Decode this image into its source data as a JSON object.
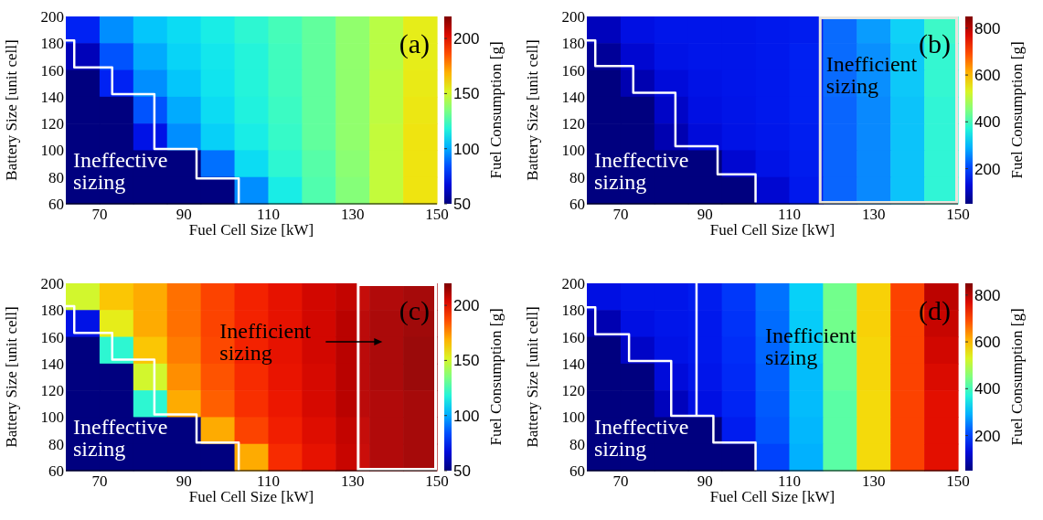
{
  "chart_data": [
    {
      "type": "heatmap",
      "title": "(a)",
      "xlabel": "Fuel Cell Size [kW]",
      "ylabel": "Battery Size [unit cell]",
      "clabel": "Fuel Consumption [g]",
      "xlim": [
        62,
        150
      ],
      "xticks": [
        70,
        90,
        110,
        130,
        150
      ],
      "ylim": [
        60,
        200
      ],
      "yticks": [
        60,
        80,
        100,
        120,
        140,
        160,
        180,
        200
      ],
      "clim": [
        50,
        220
      ],
      "cticks": [
        50,
        100,
        150,
        200
      ],
      "cells": [
        [
          75,
          95,
          105,
          110,
          115,
          120,
          125,
          130,
          138,
          145,
          155
        ],
        [
          60,
          85,
          100,
          108,
          113,
          118,
          124,
          130,
          138,
          145,
          155
        ],
        [
          50,
          75,
          95,
          105,
          112,
          118,
          124,
          130,
          138,
          146,
          156
        ],
        [
          50,
          50,
          85,
          100,
          110,
          117,
          123,
          130,
          138,
          146,
          157
        ],
        [
          50,
          50,
          70,
          95,
          107,
          115,
          122,
          130,
          138,
          147,
          158
        ],
        [
          50,
          50,
          50,
          50,
          90,
          110,
          120,
          128,
          137,
          147,
          158
        ],
        [
          50,
          50,
          50,
          50,
          50,
          95,
          115,
          127,
          136,
          147,
          158
        ]
      ],
      "series": [
        {
          "type": "line",
          "color": "#ffffff",
          "x": [
            62,
            64,
            64,
            73,
            73,
            83,
            83,
            93,
            93,
            103,
            103
          ],
          "values": [
            182,
            182,
            162,
            162,
            142,
            142,
            101,
            101,
            79,
            79,
            60
          ]
        }
      ],
      "annotations": [
        "Ineffective\nsizing"
      ]
    },
    {
      "type": "heatmap",
      "title": "(b)",
      "xlabel": "Fuel Cell Size [kW]",
      "ylabel": "Battery Size [unit cell]",
      "clabel": "Fuel Consumption [g]",
      "xlim": [
        62,
        150
      ],
      "xticks": [
        70,
        90,
        110,
        130,
        150
      ],
      "ylim": [
        60,
        200
      ],
      "yticks": [
        60,
        80,
        100,
        120,
        140,
        160,
        180,
        200
      ],
      "clim": [
        50,
        850
      ],
      "cticks": [
        200,
        400,
        600,
        800
      ],
      "cells": [
        [
          100,
          140,
          150,
          150,
          150,
          155,
          160,
          230,
          270,
          320,
          390
        ],
        [
          70,
          120,
          145,
          150,
          150,
          155,
          165,
          230,
          260,
          310,
          380
        ],
        [
          50,
          90,
          130,
          145,
          150,
          155,
          165,
          230,
          260,
          310,
          380
        ],
        [
          50,
          50,
          110,
          140,
          148,
          155,
          165,
          225,
          255,
          305,
          375
        ],
        [
          50,
          50,
          90,
          130,
          145,
          152,
          162,
          225,
          255,
          305,
          375
        ],
        [
          50,
          50,
          50,
          50,
          120,
          145,
          160,
          225,
          255,
          305,
          375
        ],
        [
          50,
          50,
          50,
          50,
          50,
          120,
          155,
          225,
          255,
          305,
          375
        ]
      ],
      "series": [
        {
          "type": "line",
          "color": "#ffffff",
          "x": [
            62,
            64,
            64,
            73,
            73,
            83,
            83,
            93,
            93,
            102,
            102
          ],
          "values": [
            182,
            182,
            163,
            163,
            143,
            143,
            103,
            103,
            82,
            82,
            61
          ]
        }
      ],
      "bands": [
        {
          "axis": "x",
          "from": 117,
          "to": 150,
          "color": "#e8e4dc"
        }
      ],
      "annotations": [
        "Inefficient\nsizing",
        "Ineffective\nsizing"
      ]
    },
    {
      "type": "heatmap",
      "title": "(c)",
      "xlabel": "Fuel Cell Size [kW]",
      "ylabel": "Battery Size [unit cell]",
      "clabel": "Fuel Consumption [g]",
      "xlim": [
        62,
        150
      ],
      "xticks": [
        70,
        90,
        110,
        130,
        150
      ],
      "ylim": [
        60,
        200
      ],
      "yticks": [
        60,
        80,
        100,
        120,
        140,
        160,
        180,
        200
      ],
      "clim": [
        50,
        220
      ],
      "cticks": [
        50,
        100,
        150,
        200
      ],
      "cells": [
        [
          150,
          165,
          170,
          180,
          188,
          195,
          200,
          205,
          208,
          212,
          214
        ],
        [
          70,
          155,
          170,
          180,
          188,
          195,
          200,
          205,
          210,
          213,
          215
        ],
        [
          50,
          120,
          165,
          178,
          187,
          195,
          200,
          205,
          210,
          213,
          216
        ],
        [
          50,
          50,
          150,
          175,
          185,
          193,
          199,
          204,
          210,
          213,
          216
        ],
        [
          50,
          50,
          120,
          170,
          183,
          192,
          198,
          204,
          210,
          212,
          214
        ],
        [
          50,
          50,
          50,
          50,
          170,
          188,
          196,
          202,
          208,
          212,
          214
        ],
        [
          50,
          50,
          50,
          50,
          50,
          170,
          193,
          200,
          207,
          212,
          214
        ]
      ],
      "series": [
        {
          "type": "line",
          "color": "#ffffff",
          "x": [
            62,
            64,
            64,
            73,
            73,
            83,
            83,
            93,
            93,
            103,
            103
          ],
          "values": [
            183,
            183,
            163,
            163,
            143,
            143,
            102,
            102,
            81,
            81,
            60
          ]
        }
      ],
      "bands": [
        {
          "axis": "x",
          "from": 131,
          "to": 150,
          "color": "#ffffff"
        }
      ],
      "annotations": [
        "Inefficient\nsizing",
        "Ineffective\nsizing"
      ]
    },
    {
      "type": "heatmap",
      "title": "(d)",
      "xlabel": "Fuel Cell Size [kW]",
      "ylabel": "Battery Size [unit cell]",
      "clabel": "Fuel Consumption [g]",
      "xlim": [
        62,
        150
      ],
      "xticks": [
        70,
        90,
        110,
        130,
        150
      ],
      "ylim": [
        60,
        200
      ],
      "yticks": [
        60,
        80,
        100,
        120,
        140,
        160,
        180,
        200
      ],
      "clim": [
        50,
        850
      ],
      "cticks": [
        200,
        400,
        600,
        800
      ],
      "cells": [
        [
          140,
          150,
          150,
          160,
          190,
          240,
          320,
          440,
          580,
          700,
          800
        ],
        [
          90,
          140,
          150,
          155,
          185,
          235,
          315,
          440,
          580,
          700,
          790
        ],
        [
          50,
          110,
          145,
          155,
          180,
          230,
          310,
          430,
          575,
          700,
          780
        ],
        [
          50,
          50,
          130,
          150,
          175,
          225,
          300,
          430,
          575,
          700,
          770
        ],
        [
          50,
          50,
          100,
          140,
          170,
          220,
          300,
          420,
          570,
          700,
          760
        ],
        [
          50,
          50,
          50,
          50,
          160,
          215,
          295,
          420,
          570,
          700,
          760
        ],
        [
          50,
          50,
          50,
          50,
          50,
          200,
          290,
          420,
          570,
          700,
          760
        ]
      ],
      "series": [
        {
          "type": "line",
          "color": "#ffffff",
          "x": [
            62,
            64,
            64,
            72,
            72,
            82,
            82,
            92,
            92,
            102,
            102
          ],
          "values": [
            182,
            182,
            162,
            162,
            142,
            142,
            101,
            101,
            81,
            81,
            60
          ]
        },
        {
          "type": "line",
          "color": "#ffffff",
          "x": [
            88,
            88
          ],
          "values": [
            200,
            101
          ]
        }
      ],
      "annotations": [
        "Inefficient\nsizing",
        "Ineffective\nsizing"
      ]
    }
  ]
}
